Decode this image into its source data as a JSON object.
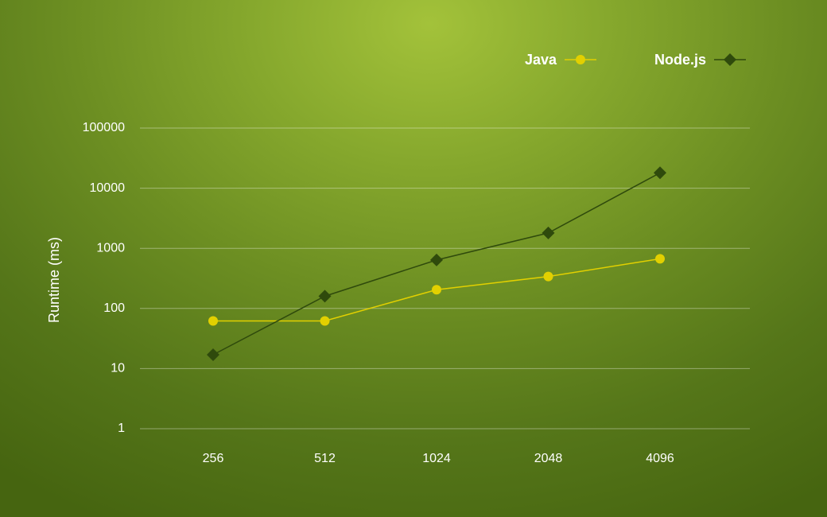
{
  "chart_data": {
    "type": "line",
    "title": "",
    "xlabel": "",
    "ylabel": "Runtime (ms)",
    "yscale": "log",
    "ylim": [
      1,
      100000
    ],
    "yticks": [
      {
        "value": 1,
        "label": "1"
      },
      {
        "value": 10,
        "label": "10"
      },
      {
        "value": 100,
        "label": "100"
      },
      {
        "value": 1000,
        "label": "1000"
      },
      {
        "value": 10000,
        "label": "10000"
      },
      {
        "value": 100000,
        "label": "100000"
      }
    ],
    "categories": [
      "256",
      "512",
      "1024",
      "2048",
      "4096"
    ],
    "grid": true,
    "legend": "top-right",
    "series": [
      {
        "name": "Java",
        "marker": "circle",
        "color": "#e2d000",
        "values": [
          62,
          62,
          205,
          340,
          670
        ]
      },
      {
        "name": "Node.js",
        "marker": "diamond",
        "color": "#2f4a0c",
        "values": [
          17,
          160,
          640,
          1800,
          18000
        ]
      }
    ]
  }
}
